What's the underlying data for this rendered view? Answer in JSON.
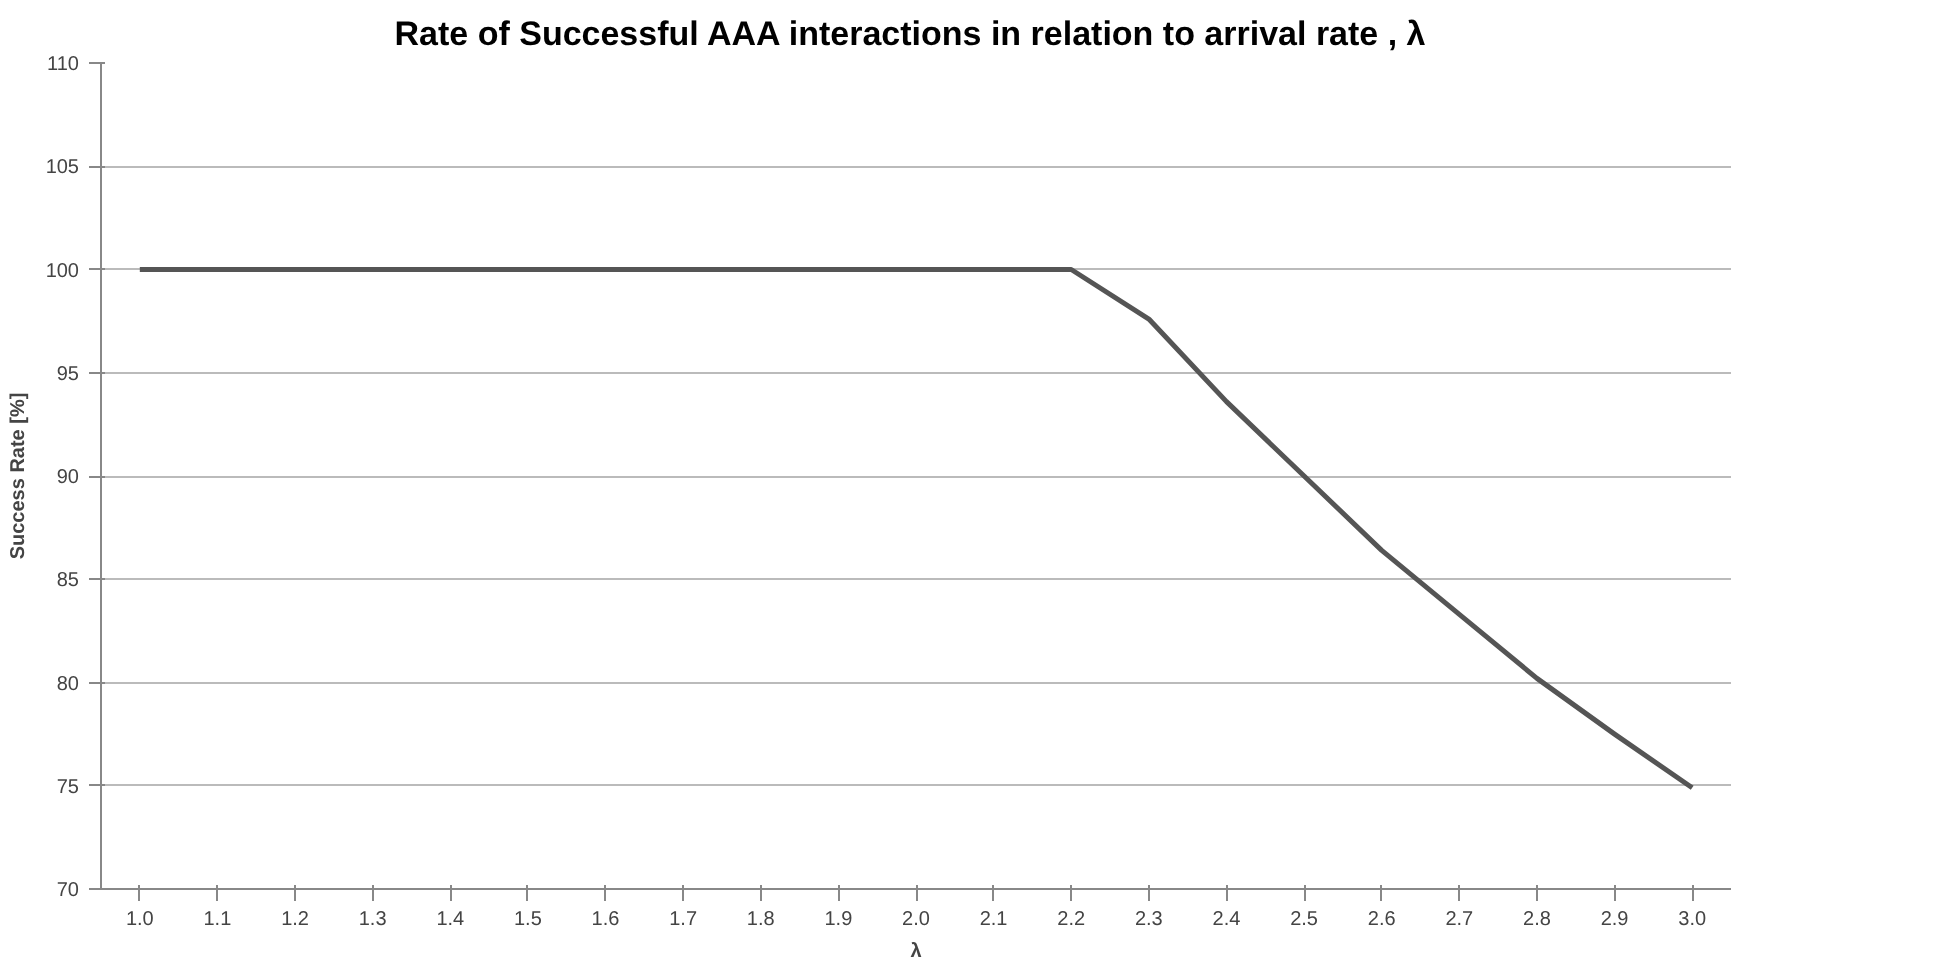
{
  "chart_data": {
    "type": "line",
    "title": "Rate of Successful AAA interactions in relation to arrival rate ,  λ",
    "xlabel": "λ",
    "ylabel": "Success Rate [%]",
    "categories": [
      "1.0",
      "1.1",
      "1.2",
      "1.3",
      "1.4",
      "1.5",
      "1.6",
      "1.7",
      "1.8",
      "1.9",
      "2.0",
      "2.1",
      "2.2",
      "2.3",
      "2.4",
      "2.5",
      "2.6",
      "2.7",
      "2.8",
      "2.9",
      "3.0"
    ],
    "series": [
      {
        "color": "#555555",
        "values": [
          100,
          100,
          100,
          100,
          100,
          100,
          100,
          100,
          100,
          100,
          100,
          100,
          100,
          97.6,
          93.6,
          90,
          86.4,
          83.3,
          80.2,
          77.5,
          74.9
        ]
      }
    ],
    "ylim": [
      70,
      110
    ],
    "yticks": [
      70,
      75,
      80,
      85,
      90,
      95,
      100,
      105,
      110
    ],
    "grid": "y"
  }
}
